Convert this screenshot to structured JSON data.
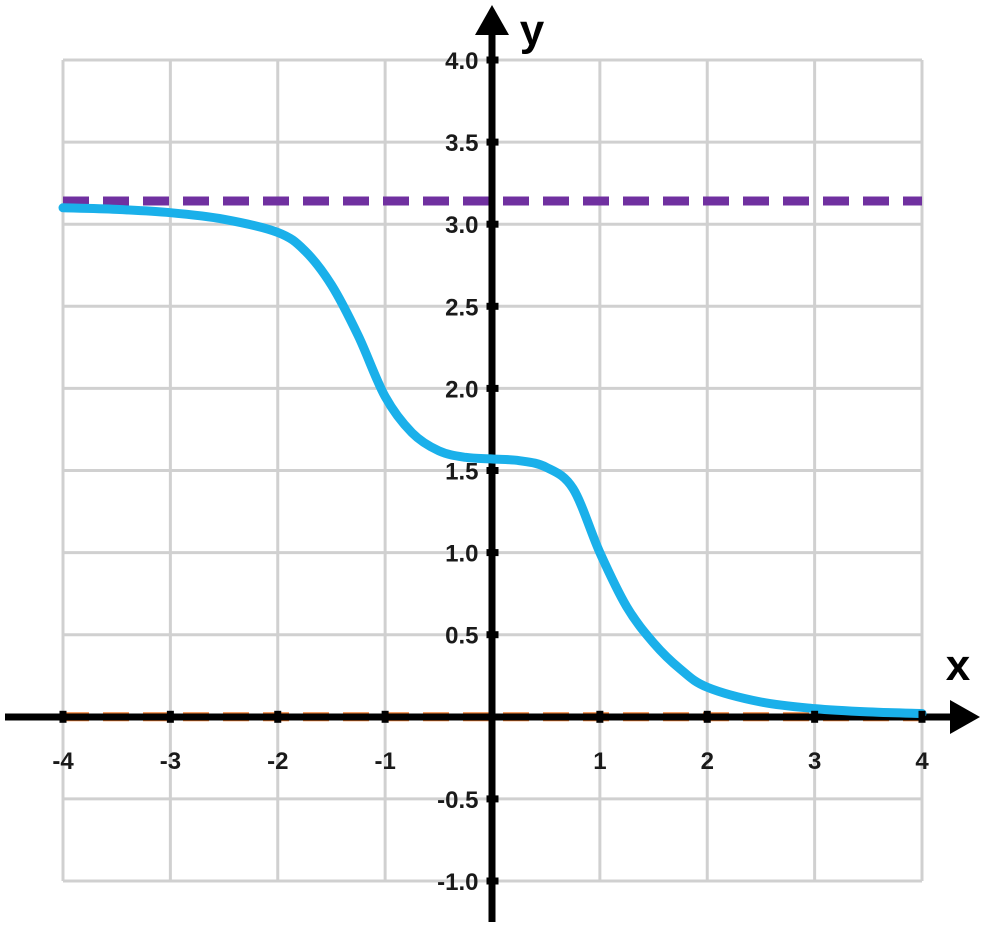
{
  "chart_data": {
    "type": "line",
    "xlabel": "x",
    "ylabel": "y",
    "xlim": [
      -4,
      4
    ],
    "ylim": [
      -1,
      4
    ],
    "x_ticks": [
      "-4",
      "-3",
      "-2",
      "-1",
      "1",
      "2",
      "3",
      "4"
    ],
    "y_ticks": [
      "4.0",
      "3.5",
      "3.0",
      "2.5",
      "2.0",
      "1.5",
      "1.0",
      "0.5",
      "-0.5",
      "-1.0"
    ],
    "grid": true,
    "series": [
      {
        "color": "#1ab0ea",
        "style": "solid",
        "x": [
          -4,
          -3.5,
          -3,
          -2.5,
          -2,
          -1.75,
          -1.5,
          -1.25,
          -1,
          -0.75,
          -0.5,
          -0.25,
          0,
          0.25,
          0.5,
          0.75,
          1,
          1.25,
          1.5,
          1.75,
          2,
          2.5,
          3,
          3.5,
          4
        ],
        "y": [
          3.1,
          3.09,
          3.07,
          3.03,
          2.95,
          2.84,
          2.63,
          2.32,
          1.95,
          1.73,
          1.62,
          1.58,
          1.57,
          1.56,
          1.52,
          1.39,
          1.0,
          0.67,
          0.45,
          0.29,
          0.18,
          0.09,
          0.05,
          0.03,
          0.02
        ]
      },
      {
        "color": "#7030a0",
        "style": "dashed",
        "x": [
          -4,
          4
        ],
        "y": [
          3.1416,
          3.1416
        ]
      },
      {
        "color": "#ed7d31",
        "style": "dashed",
        "x": [
          -4,
          4
        ],
        "y": [
          0,
          0
        ]
      }
    ]
  }
}
